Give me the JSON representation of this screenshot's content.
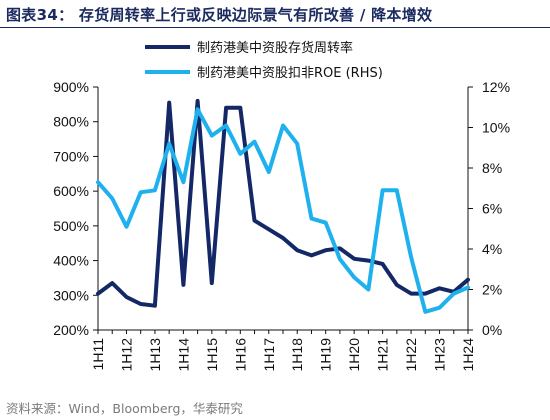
{
  "figure": {
    "title": "图表34： 存货周转率上行或反映边际景气有所改善 / 降本增效",
    "source": "资料来源：Wind，Bloomberg，华泰研究"
  },
  "colors": {
    "series_turnover": "#142766",
    "series_roe": "#1fb0ee",
    "axis": "#111111",
    "title": "#1a2a5e",
    "source": "#7a7a7a"
  },
  "chart_data": {
    "type": "line",
    "grid": false,
    "legend_position": "top-center",
    "x_tick_labels": [
      "1H11",
      "1H12",
      "1H13",
      "1H14",
      "1H15",
      "1H16",
      "1H17",
      "1H18",
      "1H19",
      "1H20",
      "1H21",
      "1H22",
      "1H23",
      "1H24"
    ],
    "x": [
      "1H11",
      "2H11",
      "1H12",
      "2H12",
      "1H13",
      "2H13",
      "1H14",
      "2H14",
      "1H15",
      "2H15",
      "1H16",
      "2H16",
      "1H17",
      "2H17",
      "1H18",
      "2H18",
      "1H19",
      "2H19",
      "1H20",
      "2H20",
      "1H21",
      "2H21",
      "1H22",
      "2H22",
      "1H23",
      "2H23",
      "1H24"
    ],
    "y_left": {
      "min": 200,
      "max": 900,
      "step": 100,
      "unit": "%"
    },
    "y_right": {
      "min": 0,
      "max": 12,
      "step": 2,
      "unit": "%"
    },
    "series": [
      {
        "name": "制药港美中资股存货周转率",
        "axis": "left",
        "values": [
          305,
          335,
          295,
          275,
          270,
          855,
          330,
          860,
          335,
          840,
          840,
          515,
          490,
          465,
          430,
          415,
          430,
          435,
          405,
          400,
          390,
          330,
          305,
          305,
          320,
          310,
          345
        ]
      },
      {
        "name": "制药港美中资股扣非ROE (RHS)",
        "axis": "right",
        "values": [
          7.3,
          6.5,
          5.1,
          6.8,
          6.9,
          9.2,
          7.3,
          10.9,
          9.6,
          10.1,
          8.7,
          9.3,
          7.8,
          10.1,
          9.2,
          5.5,
          5.3,
          3.5,
          2.6,
          2.0,
          6.9,
          6.9,
          3.6,
          0.9,
          1.1,
          1.8,
          2.1
        ]
      }
    ]
  }
}
